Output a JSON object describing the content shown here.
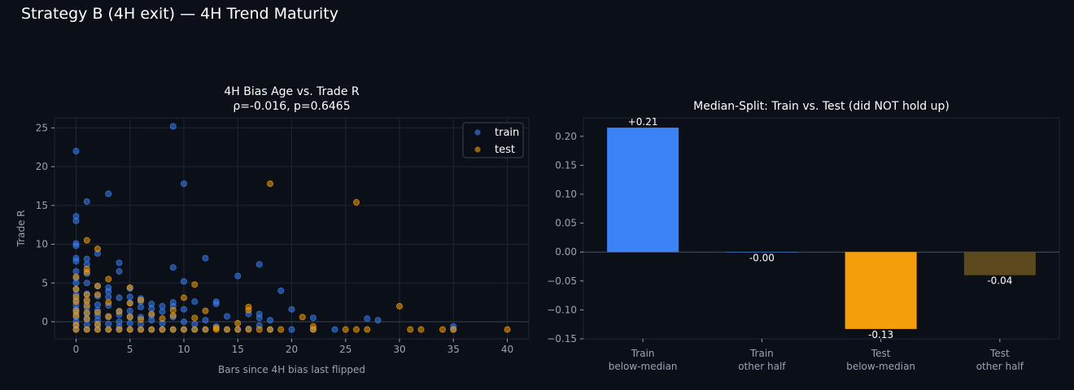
{
  "suptitle": "Strategy B (4H exit) — 4H Trend Maturity",
  "colors": {
    "train": "#3b82f6",
    "test": "#f59e0b",
    "test_other": "#5c4a1e",
    "background": "#0b0f17",
    "grid": "#1f2633",
    "text": "#ffffff",
    "tick": "#9aa3b2"
  },
  "chart_data": [
    {
      "type": "scatter",
      "title": "4H Bias Age vs. Trade R",
      "subtitle": "ρ=-0.016, p=0.6465",
      "xlabel": "Bars since 4H bias last flipped",
      "ylabel": "Trade R",
      "xlim": [
        -2,
        42
      ],
      "ylim": [
        -2.2,
        26.3
      ],
      "xticks": [
        0,
        5,
        10,
        15,
        20,
        25,
        30,
        35,
        40
      ],
      "yticks": [
        0,
        5,
        10,
        15,
        20,
        25
      ],
      "grid": true,
      "legend": "top-right",
      "series": [
        {
          "name": "train",
          "color": "#3b82f6",
          "points": [
            [
              0,
              22
            ],
            [
              0,
              13.6
            ],
            [
              0,
              13
            ],
            [
              0,
              10.1
            ],
            [
              0,
              9.8
            ],
            [
              0,
              8.2
            ],
            [
              0,
              7.8
            ],
            [
              0,
              6.5
            ],
            [
              0,
              5.6
            ],
            [
              0,
              5
            ],
            [
              0,
              4.2
            ],
            [
              0,
              3.5
            ],
            [
              0,
              2.8
            ],
            [
              0,
              2.2
            ],
            [
              0,
              1.6
            ],
            [
              0,
              1.2
            ],
            [
              0,
              0.6
            ],
            [
              0,
              0
            ],
            [
              0,
              -0.5
            ],
            [
              0,
              -1
            ],
            [
              1,
              15.5
            ],
            [
              1,
              8.1
            ],
            [
              1,
              7.4
            ],
            [
              1,
              6.2
            ],
            [
              1,
              5
            ],
            [
              1,
              3.6
            ],
            [
              1,
              2.6
            ],
            [
              1,
              1.8
            ],
            [
              1,
              1
            ],
            [
              1,
              0.3
            ],
            [
              1,
              -0.4
            ],
            [
              1,
              -1
            ],
            [
              2,
              8.8
            ],
            [
              2,
              4.6
            ],
            [
              2,
              3.3
            ],
            [
              2,
              2.2
            ],
            [
              2,
              1.5
            ],
            [
              2,
              0.8
            ],
            [
              2,
              0.2
            ],
            [
              2,
              -0.5
            ],
            [
              2,
              -1
            ],
            [
              3,
              16.5
            ],
            [
              3,
              4.4
            ],
            [
              3,
              3.9
            ],
            [
              3,
              3.2
            ],
            [
              3,
              2.1
            ],
            [
              3,
              0.6
            ],
            [
              3,
              -0.3
            ],
            [
              3,
              -1
            ],
            [
              4,
              7.6
            ],
            [
              4,
              6.5
            ],
            [
              4,
              3.1
            ],
            [
              4,
              1.4
            ],
            [
              4,
              0.9
            ],
            [
              4,
              0
            ],
            [
              4,
              -0.6
            ],
            [
              4,
              -1
            ],
            [
              5,
              4.3
            ],
            [
              5,
              3.2
            ],
            [
              5,
              2.4
            ],
            [
              5,
              1.4
            ],
            [
              5,
              0.7
            ],
            [
              5,
              -0.2
            ],
            [
              5,
              -1
            ],
            [
              6,
              3
            ],
            [
              6,
              2.6
            ],
            [
              6,
              1.9
            ],
            [
              6,
              0.6
            ],
            [
              6,
              -0.3
            ],
            [
              6,
              -1
            ],
            [
              7,
              2.3
            ],
            [
              7,
              1.7
            ],
            [
              7,
              0.8
            ],
            [
              7,
              0.2
            ],
            [
              7,
              -1
            ],
            [
              8,
              2
            ],
            [
              8,
              1.3
            ],
            [
              8,
              -0.2
            ],
            [
              8,
              -1
            ],
            [
              9,
              25.2
            ],
            [
              9,
              7
            ],
            [
              9,
              2.5
            ],
            [
              9,
              2
            ],
            [
              9,
              0.6
            ],
            [
              9,
              -1
            ],
            [
              10,
              17.8
            ],
            [
              10,
              5.2
            ],
            [
              10,
              1.6
            ],
            [
              10,
              0
            ],
            [
              10,
              -1
            ],
            [
              11,
              2.6
            ],
            [
              11,
              -0.3
            ],
            [
              11,
              -1
            ],
            [
              12,
              8.2
            ],
            [
              12,
              0.2
            ],
            [
              12,
              -1
            ],
            [
              13,
              2.6
            ],
            [
              13,
              2.3
            ],
            [
              13,
              -0.6
            ],
            [
              14,
              0.7
            ],
            [
              14,
              -1
            ],
            [
              15,
              5.9
            ],
            [
              15,
              -1
            ],
            [
              16,
              1
            ],
            [
              16,
              -0.9
            ],
            [
              17,
              7.4
            ],
            [
              17,
              1
            ],
            [
              17,
              0.5
            ],
            [
              17,
              -0.5
            ],
            [
              18,
              0.2
            ],
            [
              18,
              -1
            ],
            [
              19,
              4
            ],
            [
              20,
              1.6
            ],
            [
              20,
              -1
            ],
            [
              22,
              0.5
            ],
            [
              22,
              -1
            ],
            [
              24,
              -1
            ],
            [
              27,
              0.4
            ],
            [
              28,
              0.2
            ],
            [
              35,
              -0.6
            ],
            [
              35,
              -1
            ]
          ]
        },
        {
          "name": "test",
          "color": "#f59e0b",
          "points": [
            [
              0,
              5.8
            ],
            [
              0,
              4.2
            ],
            [
              0,
              3.2
            ],
            [
              0,
              2.6
            ],
            [
              0,
              1.4
            ],
            [
              0,
              0.8
            ],
            [
              0,
              -0.4
            ],
            [
              0,
              -1
            ],
            [
              1,
              10.5
            ],
            [
              1,
              6.8
            ],
            [
              1,
              6.4
            ],
            [
              1,
              3.5
            ],
            [
              1,
              2.8
            ],
            [
              1,
              2.1
            ],
            [
              1,
              1.2
            ],
            [
              1,
              0.4
            ],
            [
              1,
              -1
            ],
            [
              2,
              9.4
            ],
            [
              2,
              4.6
            ],
            [
              2,
              3.5
            ],
            [
              2,
              1.2
            ],
            [
              2,
              -0.3
            ],
            [
              2,
              -1
            ],
            [
              3,
              5.5
            ],
            [
              3,
              2.5
            ],
            [
              3,
              0.7
            ],
            [
              3,
              -1
            ],
            [
              4,
              1.3
            ],
            [
              4,
              -1
            ],
            [
              5,
              4.4
            ],
            [
              5,
              2.4
            ],
            [
              5,
              0.6
            ],
            [
              5,
              -1
            ],
            [
              6,
              2.8
            ],
            [
              6,
              0.3
            ],
            [
              6,
              -1
            ],
            [
              7,
              1
            ],
            [
              7,
              -1
            ],
            [
              8,
              0.4
            ],
            [
              8,
              -1
            ],
            [
              9,
              1.5
            ],
            [
              9,
              0.8
            ],
            [
              9,
              -1
            ],
            [
              10,
              3.1
            ],
            [
              10,
              -1
            ],
            [
              11,
              4.8
            ],
            [
              11,
              0.5
            ],
            [
              11,
              -1
            ],
            [
              12,
              1.4
            ],
            [
              12,
              -1
            ],
            [
              13,
              -0.8
            ],
            [
              13,
              -1
            ],
            [
              14,
              -1
            ],
            [
              15,
              -0.2
            ],
            [
              15,
              -1
            ],
            [
              16,
              1.9
            ],
            [
              16,
              1.5
            ],
            [
              16,
              -1
            ],
            [
              17,
              -1
            ],
            [
              18,
              17.8
            ],
            [
              18,
              -1
            ],
            [
              19,
              -1
            ],
            [
              21,
              0.6
            ],
            [
              22,
              -0.6
            ],
            [
              22,
              -1
            ],
            [
              25,
              -1
            ],
            [
              26,
              15.4
            ],
            [
              26,
              -1
            ],
            [
              27,
              -1
            ],
            [
              30,
              2
            ],
            [
              31,
              -1
            ],
            [
              32,
              -1
            ],
            [
              34,
              -1
            ],
            [
              35,
              -1
            ],
            [
              40,
              -1
            ]
          ]
        }
      ]
    },
    {
      "type": "bar",
      "title": "Median-Split: Train vs. Test (did NOT hold up)",
      "categories": [
        "Train\nbelow-median",
        "Train\nother half",
        "Test\nbelow-median",
        "Test\nother half"
      ],
      "values": [
        0.215,
        -0.0005,
        -0.133,
        -0.04
      ],
      "labels": [
        "+0.21",
        "-0.00",
        "-0.13",
        "-0.04"
      ],
      "colors": [
        "#3b82f6",
        "#3b82f6",
        "#f59e0b",
        "#5c4a1e"
      ],
      "ylim": [
        -0.15,
        0.232
      ],
      "yticks": [
        -0.15,
        -0.1,
        -0.05,
        0.0,
        0.05,
        0.1,
        0.15,
        0.2
      ],
      "ytick_labels": [
        "−0.15",
        "−0.10",
        "−0.05",
        "0.00",
        "0.05",
        "0.10",
        "0.15",
        "0.20"
      ],
      "grid": false
    }
  ]
}
